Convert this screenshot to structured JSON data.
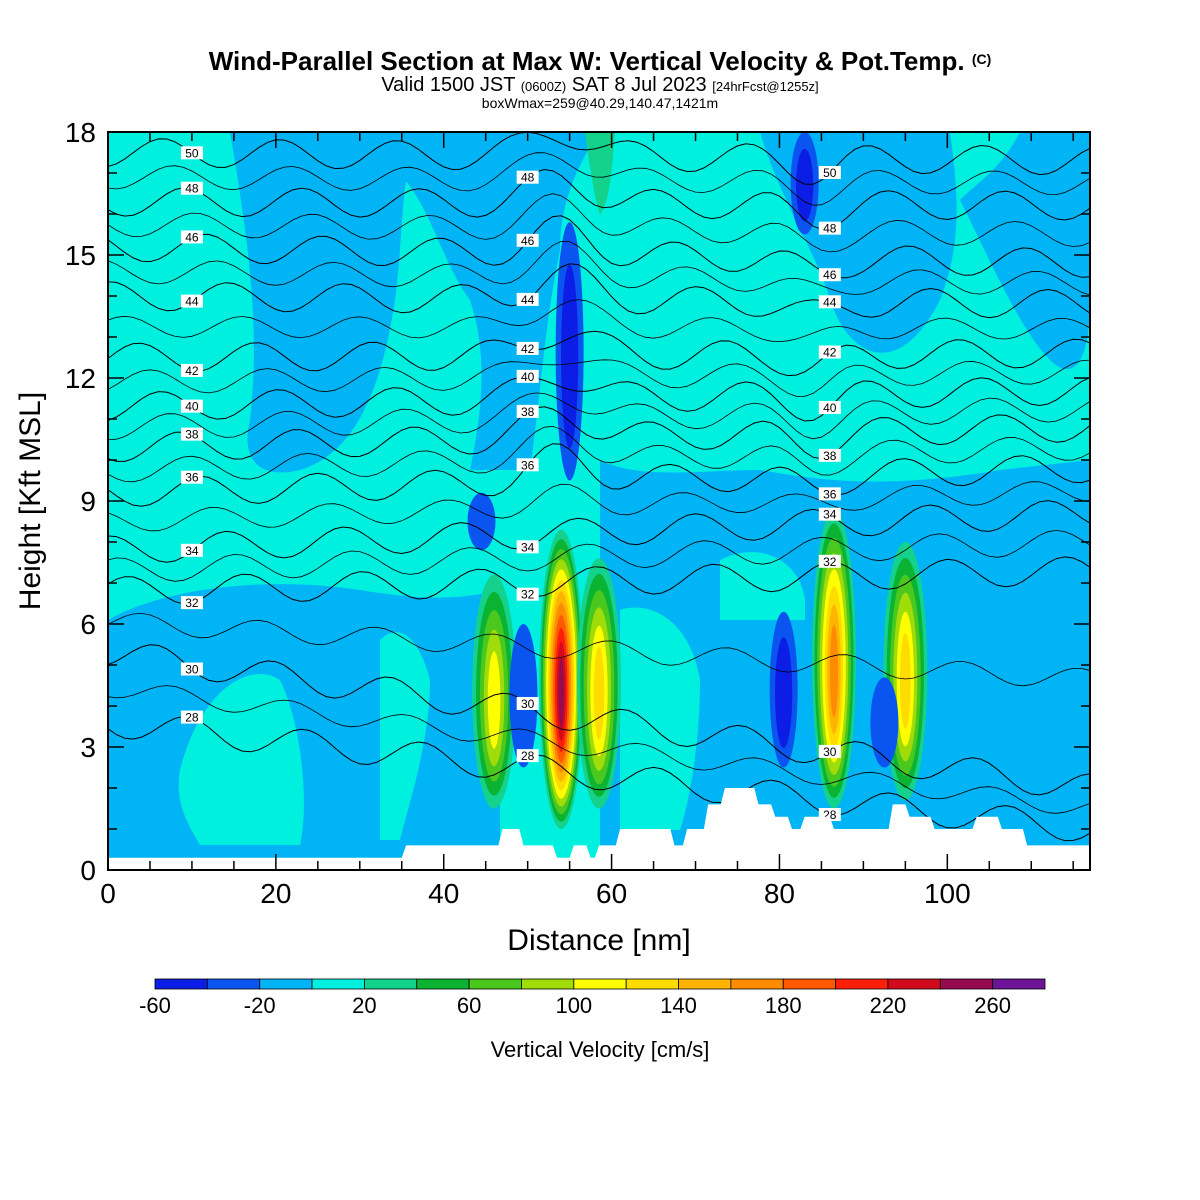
{
  "title": {
    "line1": "Wind-Parallel Section at Max W: Vertical Velocity & Pot.Temp.",
    "copyright": "(C)",
    "line2a": "Valid 1500 JST",
    "line2b": "(0600Z)",
    "line2c": "SAT 8 Jul 2023",
    "line2d": "[24hrFcst@1255z]",
    "line3": "boxWmax=259@40.29,140.47,1421m"
  },
  "colors": {
    "levels": [
      "#0c1ee6",
      "#0a55f0",
      "#00b4f5",
      "#00f0e0",
      "#14d28c",
      "#0ab432",
      "#4bc81e",
      "#a0dc0a",
      "#ffff00",
      "#ffdc00",
      "#ffb400",
      "#ff8c00",
      "#ff5a00",
      "#ff1e0a",
      "#d20a1e",
      "#960a50",
      "#6e1496"
    ],
    "terrain": "#ffffff"
  },
  "chart_data": {
    "type": "heatmap",
    "xlabel": "Distance [nm]",
    "ylabel": "Height [Kft MSL]",
    "xlim": [
      0,
      117
    ],
    "ylim": [
      0,
      18
    ],
    "xticks": [
      0,
      20,
      40,
      60,
      80,
      100
    ],
    "yticks": [
      0,
      3,
      6,
      9,
      12,
      15,
      18
    ],
    "colorbar": {
      "title": "Vertical Velocity [cm/s]",
      "boundaries": [
        -60,
        -40,
        -20,
        0,
        20,
        40,
        60,
        80,
        100,
        120,
        140,
        160,
        180,
        200,
        220,
        240,
        260,
        280
      ],
      "tick_labels": [
        "-60",
        "-20",
        "20",
        "60",
        "100",
        "140",
        "180",
        "220",
        "260"
      ],
      "tick_values": [
        -60,
        -20,
        20,
        60,
        100,
        140,
        180,
        220,
        260
      ]
    },
    "updrafts": [
      {
        "x": 46,
        "y_base": 1.5,
        "y_top": 7.2,
        "peak": 120
      },
      {
        "x": 54,
        "y_base": 1.0,
        "y_top": 8.3,
        "peak": 259
      },
      {
        "x": 58.5,
        "y_base": 1.5,
        "y_top": 7.6,
        "peak": 140
      },
      {
        "x": 86.5,
        "y_base": 1.5,
        "y_top": 8.8,
        "peak": 170
      },
      {
        "x": 95,
        "y_base": 1.7,
        "y_top": 8.0,
        "peak": 130
      }
    ],
    "downdrafts": [
      {
        "x": 55,
        "y_base": 9.5,
        "y_top": 15.8,
        "peak": -55
      },
      {
        "x": 80.5,
        "y_base": 2.5,
        "y_top": 6.3,
        "peak": -55
      },
      {
        "x": 83,
        "y_base": 15.5,
        "y_top": 18,
        "peak": -55
      },
      {
        "x": 49.5,
        "y_base": 2.5,
        "y_top": 6.0,
        "peak": -45
      },
      {
        "x": 92.5,
        "y_base": 2.5,
        "y_top": 4.7,
        "peak": -45
      },
      {
        "x": 44.5,
        "y_base": 7.8,
        "y_top": 9.2,
        "peak": -40
      }
    ],
    "theta_contours": [
      {
        "label": "28",
        "y_left": 3.6,
        "y_right": 1.0
      },
      {
        "label": "30",
        "y_left": 5.3,
        "y_right": 2.0
      },
      {
        "label": "32",
        "y_left": 6.8,
        "y_right": 7.3
      },
      {
        "label": "34",
        "y_left": 7.8,
        "y_right": 8.7
      },
      {
        "label": "36",
        "y_left": 9.2,
        "y_right": 9.8
      },
      {
        "label": "38",
        "y_left": 10.3,
        "y_right": 10.8
      },
      {
        "label": "40",
        "y_left": 11.3,
        "y_right": 11.7
      },
      {
        "label": "42",
        "y_left": 12.5,
        "y_right": 12.6
      },
      {
        "label": "44",
        "y_left": 14.0,
        "y_right": 13.8
      },
      {
        "label": "46",
        "y_left": 15.2,
        "y_right": 14.8
      },
      {
        "label": "48",
        "y_left": 16.3,
        "y_right": 16.2
      },
      {
        "label": "50",
        "y_left": 17.5,
        "y_right": 17.3
      }
    ],
    "terrain_profile": {
      "x": [
        0,
        35,
        35.5,
        46.5,
        47,
        49,
        49.5,
        53,
        53.5,
        55,
        55.5,
        57,
        57.5,
        58,
        58.5,
        60.5,
        61,
        67,
        67.5,
        68.5,
        69,
        71,
        71.5,
        73,
        73.5,
        77,
        77.5,
        79,
        79.5,
        81,
        81.5,
        82.5,
        83,
        86,
        86.5,
        93,
        93.5,
        95,
        95.5,
        98,
        98.5,
        103,
        103.5,
        106,
        106.5,
        109,
        109.5,
        112,
        112.5,
        117
      ],
      "y": [
        0.3,
        0.3,
        0.6,
        0.6,
        1.0,
        1.0,
        0.6,
        0.6,
        0.3,
        0.3,
        0.6,
        0.6,
        0.3,
        0.3,
        0.6,
        0.6,
        1.0,
        1.0,
        0.6,
        0.6,
        1.0,
        1.0,
        1.6,
        1.6,
        2.0,
        2.0,
        1.6,
        1.6,
        1.3,
        1.3,
        1.0,
        1.0,
        1.3,
        1.3,
        1.0,
        1.0,
        1.6,
        1.6,
        1.3,
        1.3,
        1.0,
        1.0,
        1.3,
        1.3,
        1.0,
        1.0,
        0.6,
        0.6,
        0.6,
        0.6
      ]
    }
  }
}
